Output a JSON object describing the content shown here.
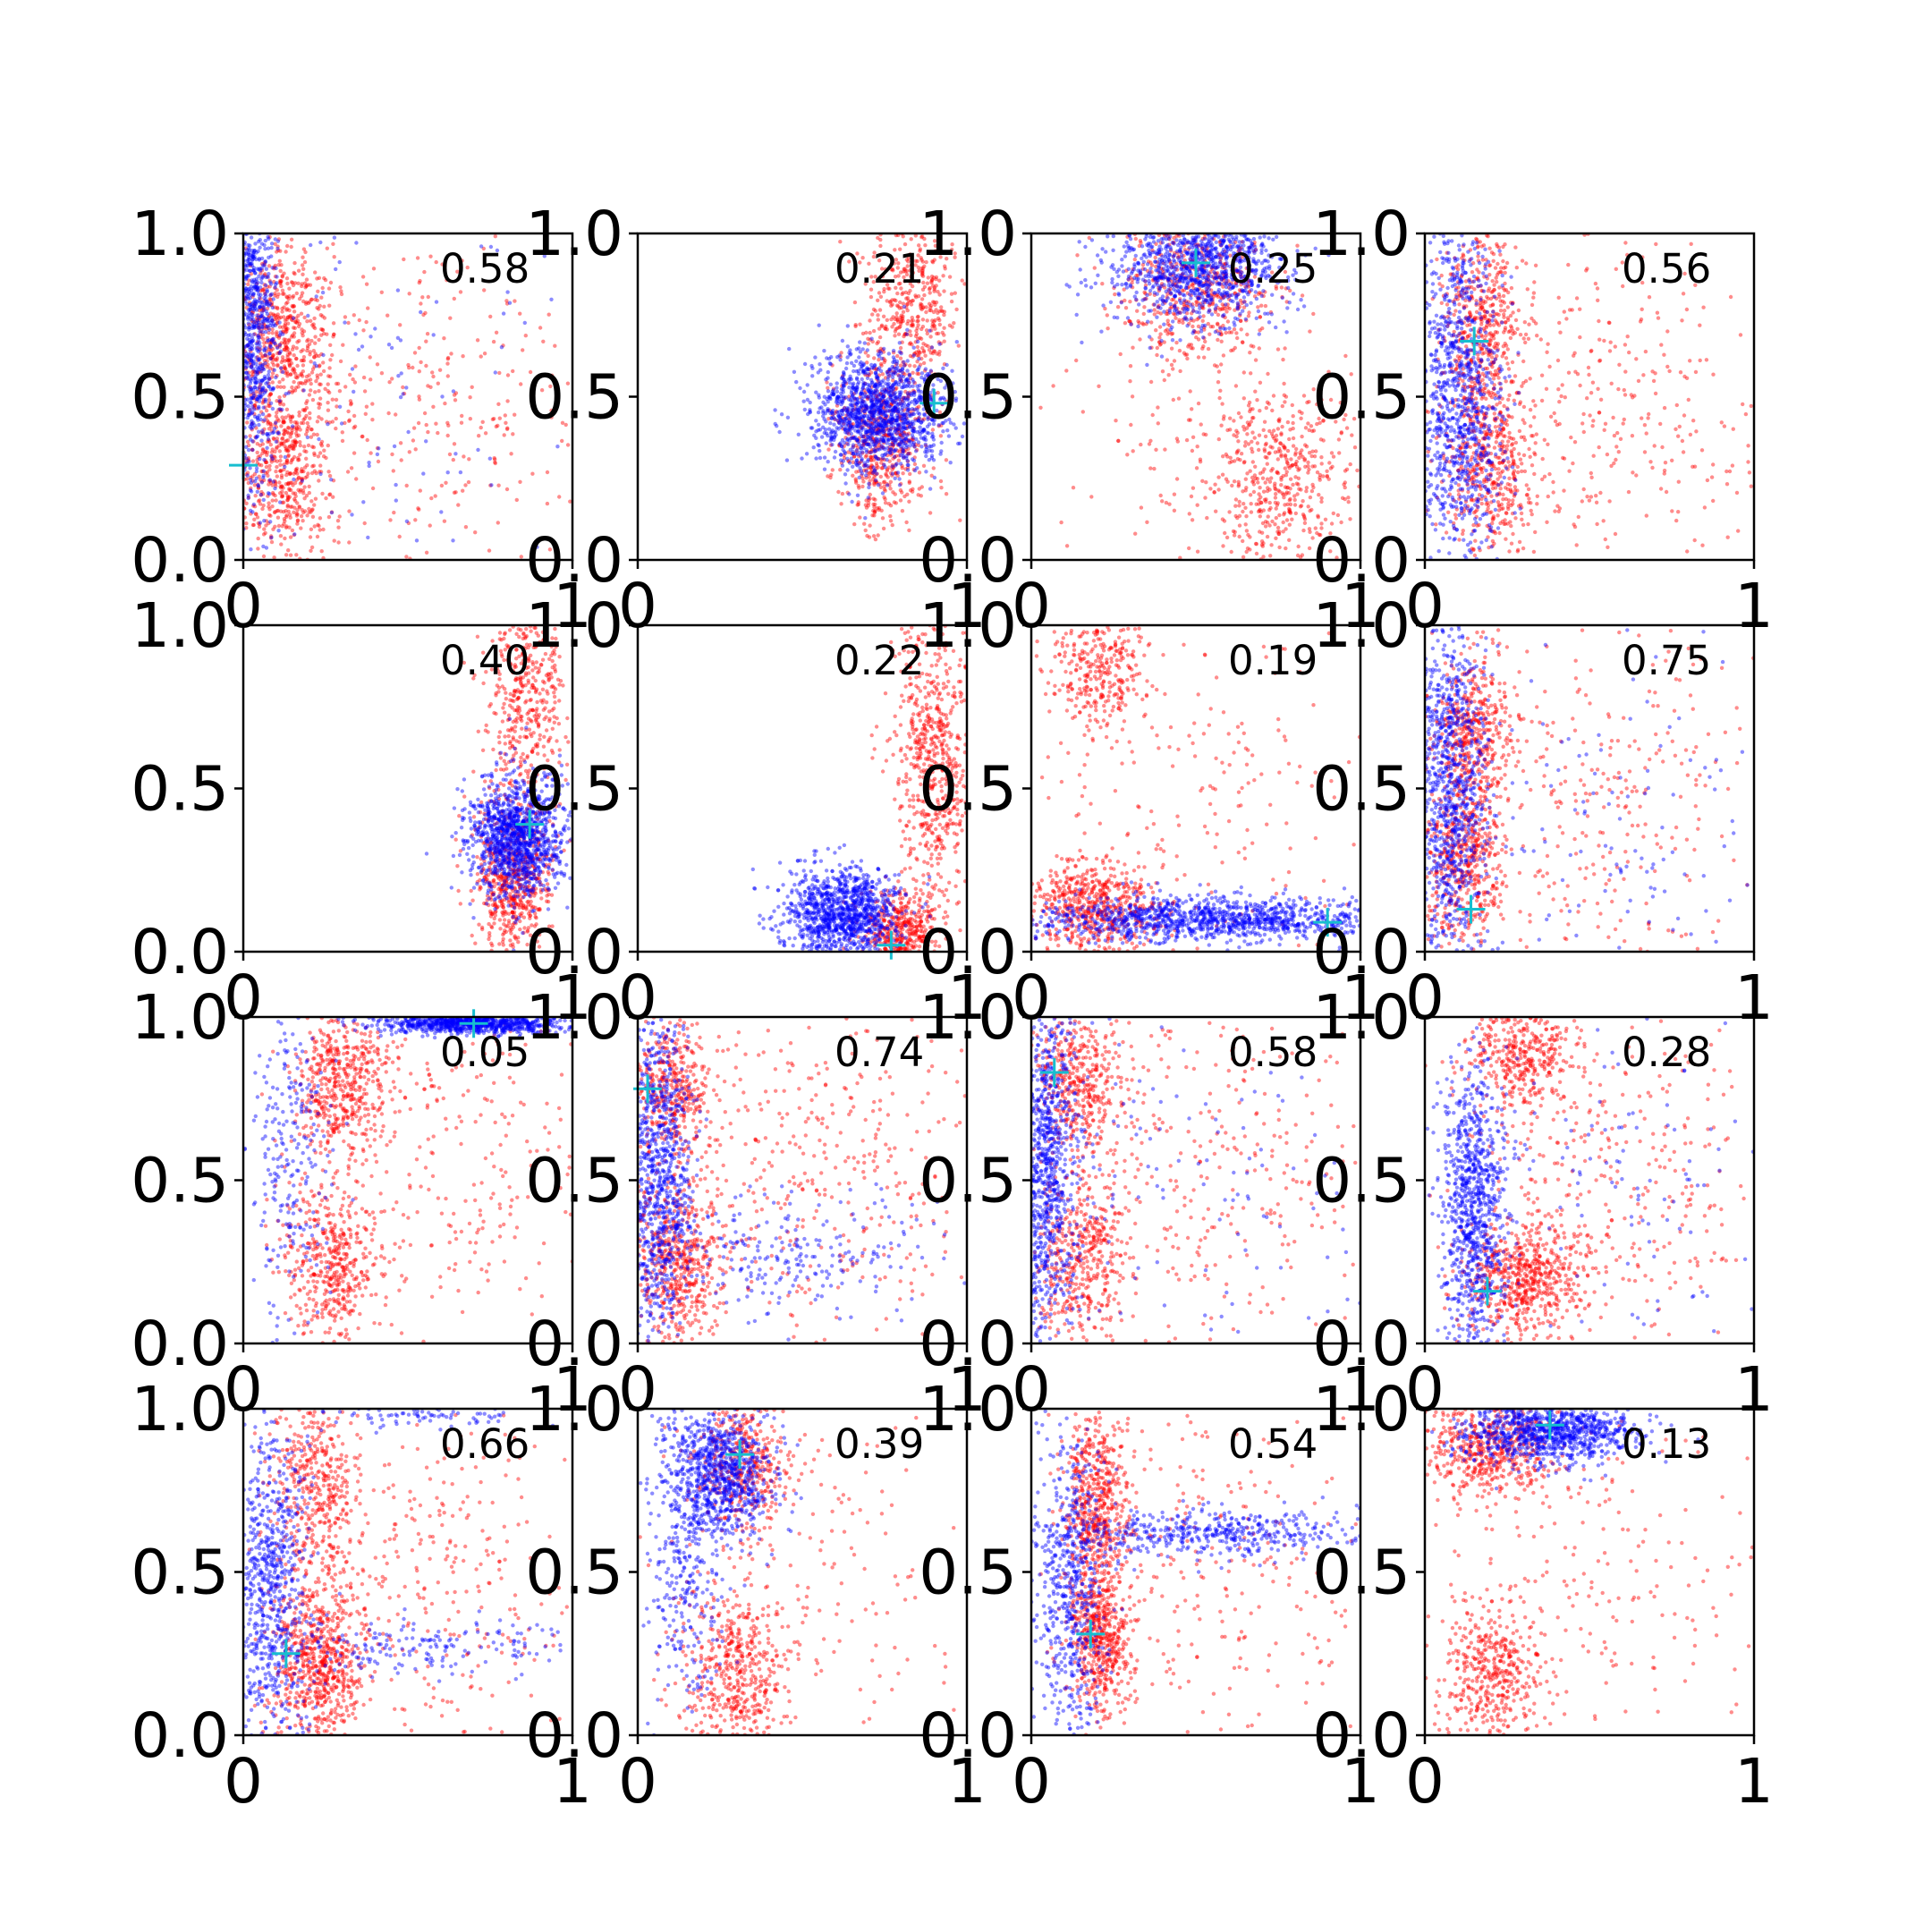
{
  "chart_data": {
    "type": "scatter",
    "colors": {
      "series_a": "#0000ff",
      "series_b": "#ff0000",
      "marker": "#17becf",
      "axes": "#000000"
    },
    "grid": false,
    "xlim": [
      0,
      1
    ],
    "ylim": [
      0,
      1
    ],
    "x_ticks": [
      "0",
      "1"
    ],
    "y_ticks": [
      "0.0",
      "0.5",
      "1.0"
    ],
    "panels": [
      {
        "score": "0.58",
        "marker": [
          0.0,
          0.29
        ],
        "blue": [
          {
            "cx": 0.03,
            "cy": 0.75,
            "sx": 0.04,
            "sy": 0.28,
            "n": 900
          },
          {
            "cx": 0.35,
            "cy": 0.5,
            "sx": 0.35,
            "sy": 0.3,
            "n": 150
          }
        ],
        "red": [
          {
            "cx": 0.12,
            "cy": 0.68,
            "sx": 0.07,
            "sy": 0.14,
            "n": 550
          },
          {
            "cx": 0.12,
            "cy": 0.28,
            "sx": 0.07,
            "sy": 0.14,
            "n": 550
          },
          {
            "cx": 0.5,
            "cy": 0.5,
            "sx": 0.28,
            "sy": 0.3,
            "n": 350
          }
        ]
      },
      {
        "score": "0.21",
        "marker": [
          0.9,
          0.48
        ],
        "blue": [
          {
            "cx": 0.73,
            "cy": 0.45,
            "sx": 0.1,
            "sy": 0.09,
            "n": 1300
          }
        ],
        "red": [
          {
            "cx": 0.83,
            "cy": 0.78,
            "sx": 0.07,
            "sy": 0.14,
            "n": 450
          },
          {
            "cx": 0.74,
            "cy": 0.36,
            "sx": 0.07,
            "sy": 0.13,
            "n": 550
          }
        ]
      },
      {
        "score": "0.25",
        "marker": [
          0.5,
          0.91
        ],
        "blue": [
          {
            "cx": 0.5,
            "cy": 0.9,
            "sx": 0.13,
            "sy": 0.09,
            "n": 1100
          }
        ],
        "red": [
          {
            "cx": 0.5,
            "cy": 0.83,
            "sx": 0.12,
            "sy": 0.11,
            "n": 550
          },
          {
            "cx": 0.75,
            "cy": 0.25,
            "sx": 0.12,
            "sy": 0.14,
            "n": 500
          },
          {
            "cx": 0.5,
            "cy": 0.4,
            "sx": 0.3,
            "sy": 0.25,
            "n": 120
          }
        ]
      },
      {
        "score": "0.56",
        "marker": [
          0.15,
          0.67
        ],
        "blue": [
          {
            "cx": 0.1,
            "cy": 0.5,
            "sx": 0.07,
            "sy": 0.27,
            "n": 1000
          }
        ],
        "red": [
          {
            "cx": 0.17,
            "cy": 0.75,
            "sx": 0.06,
            "sy": 0.14,
            "n": 450
          },
          {
            "cx": 0.2,
            "cy": 0.3,
            "sx": 0.07,
            "sy": 0.14,
            "n": 500
          },
          {
            "cx": 0.55,
            "cy": 0.45,
            "sx": 0.25,
            "sy": 0.28,
            "n": 350
          }
        ]
      },
      {
        "score": "0.40",
        "marker": [
          0.87,
          0.39
        ],
        "blue": [
          {
            "cx": 0.83,
            "cy": 0.35,
            "sx": 0.07,
            "sy": 0.09,
            "n": 1200
          }
        ],
        "red": [
          {
            "cx": 0.86,
            "cy": 0.78,
            "sx": 0.06,
            "sy": 0.16,
            "n": 450
          },
          {
            "cx": 0.82,
            "cy": 0.23,
            "sx": 0.06,
            "sy": 0.12,
            "n": 600
          }
        ]
      },
      {
        "score": "0.22",
        "marker": [
          0.77,
          0.02
        ],
        "blue": [
          {
            "cx": 0.62,
            "cy": 0.12,
            "sx": 0.09,
            "sy": 0.07,
            "n": 1100
          }
        ],
        "red": [
          {
            "cx": 0.9,
            "cy": 0.6,
            "sx": 0.06,
            "sy": 0.22,
            "n": 650
          },
          {
            "cx": 0.8,
            "cy": 0.06,
            "sx": 0.06,
            "sy": 0.06,
            "n": 450
          }
        ]
      },
      {
        "score": "0.19",
        "marker": [
          0.9,
          0.09
        ],
        "blue": [
          {
            "cx": 0.55,
            "cy": 0.1,
            "sx": 0.3,
            "sy": 0.035,
            "n": 1200
          }
        ],
        "red": [
          {
            "cx": 0.2,
            "cy": 0.88,
            "sx": 0.08,
            "sy": 0.1,
            "n": 350
          },
          {
            "cx": 0.2,
            "cy": 0.13,
            "sx": 0.1,
            "sy": 0.07,
            "n": 600
          },
          {
            "cx": 0.5,
            "cy": 0.5,
            "sx": 0.28,
            "sy": 0.28,
            "n": 200
          }
        ]
      },
      {
        "score": "0.75",
        "marker": [
          0.14,
          0.13
        ],
        "blue": [
          {
            "cx": 0.07,
            "cy": 0.5,
            "sx": 0.06,
            "sy": 0.28,
            "n": 1000
          },
          {
            "cx": 0.5,
            "cy": 0.4,
            "sx": 0.3,
            "sy": 0.28,
            "n": 150
          }
        ],
        "red": [
          {
            "cx": 0.15,
            "cy": 0.68,
            "sx": 0.06,
            "sy": 0.13,
            "n": 450
          },
          {
            "cx": 0.12,
            "cy": 0.28,
            "sx": 0.06,
            "sy": 0.14,
            "n": 500
          },
          {
            "cx": 0.55,
            "cy": 0.45,
            "sx": 0.25,
            "sy": 0.28,
            "n": 300
          }
        ]
      },
      {
        "score": "0.05",
        "marker": [
          0.7,
          0.98
        ],
        "blue": [
          {
            "cx": 0.7,
            "cy": 0.98,
            "sx": 0.14,
            "sy": 0.015,
            "n": 900
          },
          {
            "cx": 0.15,
            "cy": 0.6,
            "sx": 0.06,
            "sy": 0.25,
            "n": 250
          }
        ],
        "red": [
          {
            "cx": 0.3,
            "cy": 0.8,
            "sx": 0.07,
            "sy": 0.12,
            "n": 500
          },
          {
            "cx": 0.27,
            "cy": 0.22,
            "sx": 0.07,
            "sy": 0.13,
            "n": 450
          },
          {
            "cx": 0.6,
            "cy": 0.6,
            "sx": 0.25,
            "sy": 0.3,
            "n": 300
          }
        ]
      },
      {
        "score": "0.74",
        "marker": [
          0.03,
          0.78
        ],
        "blue": [
          {
            "cx": 0.06,
            "cy": 0.5,
            "sx": 0.05,
            "sy": 0.27,
            "n": 900
          },
          {
            "cx": 0.45,
            "cy": 0.28,
            "sx": 0.25,
            "sy": 0.1,
            "n": 250
          }
        ],
        "red": [
          {
            "cx": 0.1,
            "cy": 0.78,
            "sx": 0.06,
            "sy": 0.11,
            "n": 400
          },
          {
            "cx": 0.12,
            "cy": 0.25,
            "sx": 0.07,
            "sy": 0.13,
            "n": 550
          },
          {
            "cx": 0.55,
            "cy": 0.55,
            "sx": 0.25,
            "sy": 0.28,
            "n": 400
          }
        ]
      },
      {
        "score": "0.58",
        "marker": [
          0.07,
          0.83
        ],
        "blue": [
          {
            "cx": 0.04,
            "cy": 0.55,
            "sx": 0.05,
            "sy": 0.28,
            "n": 1000
          },
          {
            "cx": 0.5,
            "cy": 0.5,
            "sx": 0.3,
            "sy": 0.3,
            "n": 120
          }
        ],
        "red": [
          {
            "cx": 0.15,
            "cy": 0.8,
            "sx": 0.07,
            "sy": 0.12,
            "n": 450
          },
          {
            "cx": 0.15,
            "cy": 0.25,
            "sx": 0.07,
            "sy": 0.14,
            "n": 450
          },
          {
            "cx": 0.55,
            "cy": 0.55,
            "sx": 0.25,
            "sy": 0.28,
            "n": 300
          }
        ]
      },
      {
        "score": "0.28",
        "marker": [
          0.19,
          0.16
        ],
        "blue": [
          {
            "cx": 0.15,
            "cy": 0.4,
            "sx": 0.05,
            "sy": 0.22,
            "n": 900
          },
          {
            "cx": 0.6,
            "cy": 0.5,
            "sx": 0.25,
            "sy": 0.28,
            "n": 100
          }
        ],
        "red": [
          {
            "cx": 0.3,
            "cy": 0.88,
            "sx": 0.08,
            "sy": 0.09,
            "n": 400
          },
          {
            "cx": 0.3,
            "cy": 0.2,
            "sx": 0.09,
            "sy": 0.09,
            "n": 600
          },
          {
            "cx": 0.6,
            "cy": 0.5,
            "sx": 0.25,
            "sy": 0.28,
            "n": 350
          }
        ]
      },
      {
        "score": "0.66",
        "marker": [
          0.13,
          0.25
        ],
        "blue": [
          {
            "cx": 0.08,
            "cy": 0.45,
            "sx": 0.06,
            "sy": 0.28,
            "n": 800
          },
          {
            "cx": 0.55,
            "cy": 0.27,
            "sx": 0.28,
            "sy": 0.04,
            "n": 200
          },
          {
            "cx": 0.55,
            "cy": 0.98,
            "sx": 0.15,
            "sy": 0.02,
            "n": 100
          }
        ],
        "red": [
          {
            "cx": 0.22,
            "cy": 0.78,
            "sx": 0.07,
            "sy": 0.16,
            "n": 450
          },
          {
            "cx": 0.23,
            "cy": 0.22,
            "sx": 0.07,
            "sy": 0.12,
            "n": 650
          },
          {
            "cx": 0.55,
            "cy": 0.5,
            "sx": 0.25,
            "sy": 0.3,
            "n": 350
          }
        ]
      },
      {
        "score": "0.39",
        "marker": [
          0.31,
          0.86
        ],
        "blue": [
          {
            "cx": 0.25,
            "cy": 0.8,
            "sx": 0.08,
            "sy": 0.1,
            "n": 900
          },
          {
            "cx": 0.15,
            "cy": 0.45,
            "sx": 0.06,
            "sy": 0.2,
            "n": 250
          }
        ],
        "red": [
          {
            "cx": 0.32,
            "cy": 0.83,
            "sx": 0.07,
            "sy": 0.1,
            "n": 400
          },
          {
            "cx": 0.3,
            "cy": 0.2,
            "sx": 0.08,
            "sy": 0.12,
            "n": 450
          },
          {
            "cx": 0.5,
            "cy": 0.5,
            "sx": 0.25,
            "sy": 0.3,
            "n": 200
          }
        ]
      },
      {
        "score": "0.54",
        "marker": [
          0.18,
          0.31
        ],
        "blue": [
          {
            "cx": 0.12,
            "cy": 0.45,
            "sx": 0.06,
            "sy": 0.25,
            "n": 600
          },
          {
            "cx": 0.55,
            "cy": 0.62,
            "sx": 0.25,
            "sy": 0.035,
            "n": 450
          }
        ],
        "red": [
          {
            "cx": 0.2,
            "cy": 0.72,
            "sx": 0.05,
            "sy": 0.14,
            "n": 550
          },
          {
            "cx": 0.21,
            "cy": 0.3,
            "sx": 0.05,
            "sy": 0.12,
            "n": 550
          },
          {
            "cx": 0.55,
            "cy": 0.5,
            "sx": 0.25,
            "sy": 0.28,
            "n": 250
          }
        ]
      },
      {
        "score": "0.13",
        "marker": [
          0.38,
          0.95
        ],
        "blue": [
          {
            "cx": 0.38,
            "cy": 0.93,
            "sx": 0.13,
            "sy": 0.05,
            "n": 1000
          }
        ],
        "red": [
          {
            "cx": 0.2,
            "cy": 0.88,
            "sx": 0.1,
            "sy": 0.08,
            "n": 550
          },
          {
            "cx": 0.2,
            "cy": 0.18,
            "sx": 0.08,
            "sy": 0.12,
            "n": 450
          },
          {
            "cx": 0.55,
            "cy": 0.5,
            "sx": 0.25,
            "sy": 0.28,
            "n": 200
          }
        ]
      }
    ]
  }
}
